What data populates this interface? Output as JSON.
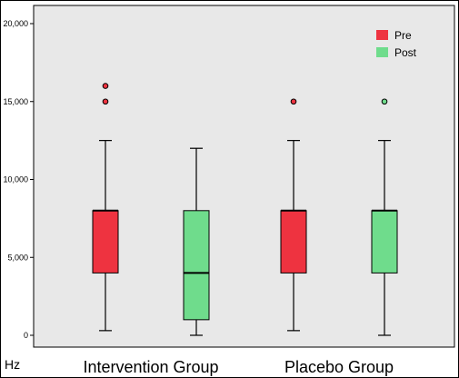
{
  "chart_data": {
    "type": "boxplot",
    "ylabel": "Hz",
    "ylim": [
      0,
      20000
    ],
    "y_ticks": [
      0,
      5000,
      10000,
      15000,
      20000
    ],
    "y_tick_labels": [
      "0",
      "5,000",
      "10,000",
      "15,000",
      "20,000"
    ],
    "categories": [
      "Intervention Group",
      "Placebo Group"
    ],
    "legend": {
      "position": "top-right",
      "entries": [
        "Pre",
        "Post"
      ]
    },
    "colors": {
      "Pre": "#ee3340",
      "Post": "#6fdc8c",
      "plot_bg": "#e8e8e8"
    },
    "series": [
      {
        "name": "Pre",
        "boxes": [
          {
            "category": "Intervention Group",
            "whisker_low": 300,
            "q1": 4000,
            "median": 8000,
            "q3": 8000,
            "whisker_high": 12500,
            "outliers": [
              15000,
              16000
            ]
          },
          {
            "category": "Placebo Group",
            "whisker_low": 300,
            "q1": 4000,
            "median": 8000,
            "q3": 8000,
            "whisker_high": 12500,
            "outliers": [
              15000
            ]
          }
        ]
      },
      {
        "name": "Post",
        "boxes": [
          {
            "category": "Intervention Group",
            "whisker_low": 0,
            "q1": 1000,
            "median": 4000,
            "q3": 8000,
            "whisker_high": 12000,
            "outliers": []
          },
          {
            "category": "Placebo Group",
            "whisker_low": 0,
            "q1": 4000,
            "median": 8000,
            "q3": 8000,
            "whisker_high": 12500,
            "outliers": [
              15000
            ]
          }
        ]
      }
    ]
  }
}
